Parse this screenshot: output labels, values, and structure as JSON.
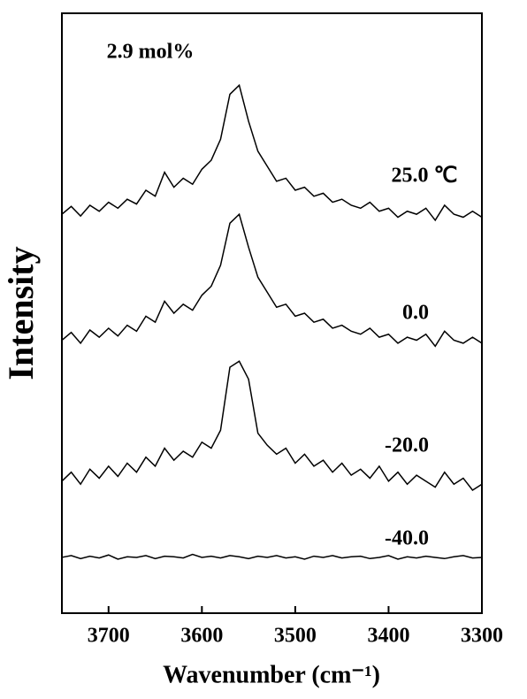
{
  "chart_data": {
    "type": "line",
    "annotation": "2.9 mol%",
    "xlabel": "Wavenumber (cm⁻¹)",
    "ylabel": "Intensity",
    "xlim": [
      3750,
      3300
    ],
    "xticks": [
      3700,
      3600,
      3500,
      3400,
      3300
    ],
    "ylim": [
      0,
      100
    ],
    "x": [
      3750,
      3740,
      3730,
      3720,
      3710,
      3700,
      3690,
      3680,
      3670,
      3660,
      3650,
      3640,
      3630,
      3620,
      3610,
      3600,
      3590,
      3580,
      3570,
      3560,
      3550,
      3540,
      3530,
      3520,
      3510,
      3500,
      3490,
      3480,
      3470,
      3460,
      3450,
      3440,
      3430,
      3420,
      3410,
      3400,
      3390,
      3380,
      3370,
      3360,
      3350,
      3340,
      3330,
      3320,
      3310,
      3300
    ],
    "series": [
      {
        "name": "25.0 ℃",
        "color": "#000000",
        "values": [
          66.5,
          67.8,
          66.2,
          68.0,
          67.0,
          68.5,
          67.5,
          69.0,
          68.2,
          70.5,
          69.5,
          73.5,
          71.0,
          72.5,
          71.5,
          74.0,
          75.5,
          79.0,
          86.5,
          88.0,
          82.0,
          77.0,
          74.5,
          72.0,
          72.5,
          70.5,
          71.0,
          69.5,
          70.0,
          68.5,
          69.0,
          68.0,
          67.5,
          68.5,
          67.0,
          67.5,
          66.0,
          67.0,
          66.5,
          67.5,
          65.5,
          68.0,
          66.5,
          66.0,
          67.0,
          66.0
        ]
      },
      {
        "name": "0.0",
        "color": "#000000",
        "values": [
          45.5,
          46.8,
          45.0,
          47.2,
          46.0,
          47.5,
          46.2,
          48.0,
          47.0,
          49.5,
          48.5,
          52.0,
          50.0,
          51.5,
          50.5,
          53.0,
          54.5,
          58.0,
          65.0,
          66.5,
          61.0,
          56.0,
          53.5,
          51.0,
          51.5,
          49.5,
          50.0,
          48.5,
          49.0,
          47.5,
          48.0,
          47.0,
          46.5,
          47.5,
          46.0,
          46.5,
          45.0,
          46.0,
          45.5,
          46.5,
          44.5,
          47.0,
          45.5,
          45.0,
          46.0,
          45.0
        ]
      },
      {
        "name": "-20.0",
        "color": "#000000",
        "values": [
          22.0,
          23.5,
          21.5,
          24.0,
          22.5,
          24.5,
          22.8,
          25.0,
          23.5,
          26.0,
          24.5,
          27.5,
          25.5,
          27.0,
          26.0,
          28.5,
          27.5,
          30.5,
          41.0,
          42.0,
          39.0,
          30.0,
          28.0,
          26.5,
          27.5,
          25.0,
          26.5,
          24.5,
          25.5,
          23.5,
          25.0,
          23.0,
          24.0,
          22.5,
          24.5,
          22.0,
          23.5,
          21.5,
          23.0,
          22.0,
          21.0,
          23.5,
          21.5,
          22.5,
          20.5,
          21.5
        ]
      },
      {
        "name": "-40.0",
        "color": "#000000",
        "values": [
          9.3,
          9.6,
          9.1,
          9.5,
          9.2,
          9.7,
          9.0,
          9.4,
          9.3,
          9.6,
          9.1,
          9.5,
          9.4,
          9.2,
          9.8,
          9.3,
          9.5,
          9.2,
          9.6,
          9.4,
          9.1,
          9.5,
          9.3,
          9.6,
          9.2,
          9.4,
          9.0,
          9.5,
          9.3,
          9.6,
          9.2,
          9.4,
          9.5,
          9.1,
          9.3,
          9.6,
          9.0,
          9.4,
          9.2,
          9.5,
          9.3,
          9.1,
          9.4,
          9.6,
          9.2,
          9.3
        ]
      }
    ]
  }
}
